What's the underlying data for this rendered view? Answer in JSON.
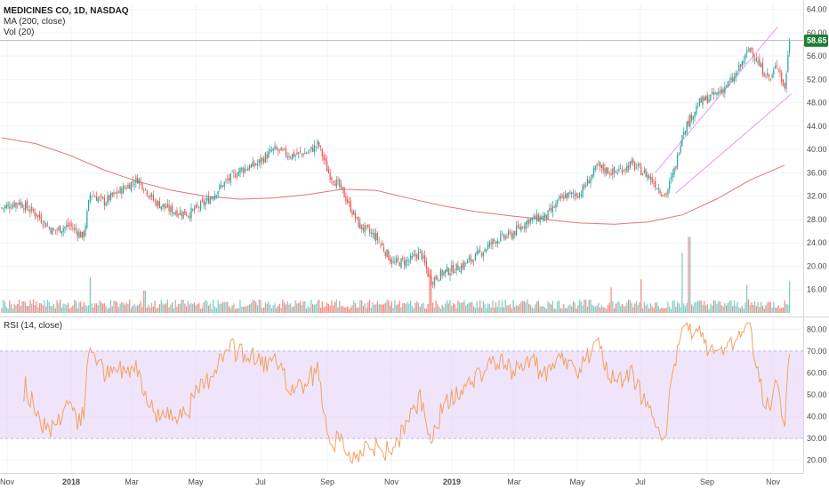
{
  "header": {
    "symbol_title": "MEDICINES CO, 1D, NASDAQ",
    "ma_label": "MA (200, close)",
    "vol_label": "Vol (20)",
    "rsi_label": "RSI (14, close)"
  },
  "last_price": {
    "value": 58.65,
    "label": "58.65"
  },
  "colors": {
    "up": "#26a69a",
    "down": "#ef5350",
    "vol_up": "#80cbc4",
    "vol_down": "#f28b82",
    "ma": "#e57373",
    "rsi": "#f4a261",
    "rsi_band": "#eadbf7",
    "channel": "#e59be8",
    "badge": "#1e7e34",
    "grid": "#f0f3f5",
    "axis": "#555555"
  },
  "chart_data": [
    {
      "type": "candlestick",
      "name": "price",
      "x_ticks": [
        "Nov",
        "2018",
        "Mar",
        "May",
        "Jul",
        "Sep",
        "Nov",
        "2019",
        "Mar",
        "May",
        "Jul",
        "Sep",
        "Nov"
      ],
      "y_ticks": [
        16.0,
        20.0,
        24.0,
        28.0,
        32.0,
        36.0,
        40.0,
        44.0,
        48.0,
        52.0,
        56.0,
        60.0,
        64.0
      ],
      "y_tick_labels": [
        "16.00",
        "20.00",
        "24.00",
        "28.00",
        "32.00",
        "36.00",
        "40.00",
        "44.00",
        "48.00",
        "52.00",
        "56.00",
        "60.00",
        "64.00"
      ],
      "ylim": [
        12,
        65
      ],
      "close_anchors": [
        {
          "month": 0,
          "v": 30.0
        },
        {
          "month": 0.5,
          "v": 31.0
        },
        {
          "month": 1.0,
          "v": 29.0
        },
        {
          "month": 1.5,
          "v": 26.0
        },
        {
          "month": 2.0,
          "v": 27.0
        },
        {
          "month": 2.4,
          "v": 25.0
        },
        {
          "month": 2.6,
          "v": 32.5
        },
        {
          "month": 3.0,
          "v": 31.0
        },
        {
          "month": 3.5,
          "v": 33.0
        },
        {
          "month": 4.0,
          "v": 35.0
        },
        {
          "month": 4.5,
          "v": 31.0
        },
        {
          "month": 5.0,
          "v": 29.5
        },
        {
          "month": 5.5,
          "v": 29.0
        },
        {
          "month": 6.0,
          "v": 31.0
        },
        {
          "month": 6.5,
          "v": 34.0
        },
        {
          "month": 7.0,
          "v": 36.5
        },
        {
          "month": 7.5,
          "v": 37.5
        },
        {
          "month": 8.0,
          "v": 40.0
        },
        {
          "month": 8.5,
          "v": 39.0
        },
        {
          "month": 9.0,
          "v": 39.5
        },
        {
          "month": 9.3,
          "v": 41.0
        },
        {
          "month": 9.6,
          "v": 36.0
        },
        {
          "month": 10.0,
          "v": 33.0
        },
        {
          "month": 10.5,
          "v": 27.0
        },
        {
          "month": 11.0,
          "v": 25.0
        },
        {
          "month": 11.5,
          "v": 20.5
        },
        {
          "month": 12.0,
          "v": 21.0
        },
        {
          "month": 12.3,
          "v": 22.5
        },
        {
          "month": 12.6,
          "v": 17.5
        },
        {
          "month": 13.0,
          "v": 19.0
        },
        {
          "month": 13.5,
          "v": 20.0
        },
        {
          "month": 14.0,
          "v": 22.0
        },
        {
          "month": 14.5,
          "v": 24.5
        },
        {
          "month": 15.0,
          "v": 25.5
        },
        {
          "month": 15.5,
          "v": 28.0
        },
        {
          "month": 16.0,
          "v": 28.5
        },
        {
          "month": 16.5,
          "v": 32.0
        },
        {
          "month": 17.0,
          "v": 32.5
        },
        {
          "month": 17.5,
          "v": 37.0
        },
        {
          "month": 18.0,
          "v": 36.0
        },
        {
          "month": 18.5,
          "v": 37.5
        },
        {
          "month": 19.0,
          "v": 35.5
        },
        {
          "month": 19.5,
          "v": 32.0
        },
        {
          "month": 19.8,
          "v": 37.0
        },
        {
          "month": 20.0,
          "v": 43.0
        },
        {
          "month": 20.5,
          "v": 48.0
        },
        {
          "month": 21.0,
          "v": 49.5
        },
        {
          "month": 21.5,
          "v": 52.0
        },
        {
          "month": 22.0,
          "v": 57.5
        },
        {
          "month": 22.3,
          "v": 54.0
        },
        {
          "month": 22.6,
          "v": 52.0
        },
        {
          "month": 22.8,
          "v": 55.0
        },
        {
          "month": 23.0,
          "v": 50.0
        },
        {
          "month": 23.15,
          "v": 58.65
        }
      ],
      "x_months": 23.5,
      "moving_average_200": [
        {
          "month": 0,
          "v": 42.0
        },
        {
          "month": 1,
          "v": 41.0
        },
        {
          "month": 2,
          "v": 39.0
        },
        {
          "month": 3,
          "v": 36.5
        },
        {
          "month": 4,
          "v": 34.5
        },
        {
          "month": 5,
          "v": 33.0
        },
        {
          "month": 6,
          "v": 32.0
        },
        {
          "month": 7,
          "v": 31.5
        },
        {
          "month": 8,
          "v": 31.7
        },
        {
          "month": 9,
          "v": 32.3
        },
        {
          "month": 10,
          "v": 33.2
        },
        {
          "month": 11,
          "v": 33.0
        },
        {
          "month": 12,
          "v": 31.6
        },
        {
          "month": 13,
          "v": 30.3
        },
        {
          "month": 14,
          "v": 29.3
        },
        {
          "month": 15,
          "v": 28.6
        },
        {
          "month": 16,
          "v": 28.0
        },
        {
          "month": 17,
          "v": 27.4
        },
        {
          "month": 18,
          "v": 27.2
        },
        {
          "month": 19,
          "v": 27.6
        },
        {
          "month": 20,
          "v": 28.8
        },
        {
          "month": 21,
          "v": 31.5
        },
        {
          "month": 22,
          "v": 34.8
        },
        {
          "month": 23,
          "v": 37.3
        }
      ],
      "channel_lines": [
        {
          "from": {
            "month": 19.2,
            "v": 36.0
          },
          "to": {
            "month": 22.8,
            "v": 61.0
          }
        },
        {
          "from": {
            "month": 19.8,
            "v": 32.5
          },
          "to": {
            "month": 23.2,
            "v": 49.5
          }
        }
      ]
    },
    {
      "type": "bar",
      "name": "volume",
      "note_spikes": [
        {
          "month": 2.6,
          "rel": 0.45
        },
        {
          "month": 4.2,
          "rel": 0.28
        },
        {
          "month": 12.6,
          "rel": 0.55
        },
        {
          "month": 17.9,
          "rel": 0.32
        },
        {
          "month": 18.8,
          "rel": 0.42
        },
        {
          "month": 20.0,
          "rel": 0.75
        },
        {
          "month": 20.2,
          "rel": 0.95
        },
        {
          "month": 21.9,
          "rel": 0.35
        },
        {
          "month": 23.15,
          "rel": 0.4
        }
      ]
    },
    {
      "type": "line",
      "name": "rsi",
      "y_ticks": [
        20.0,
        30.0,
        40.0,
        50.0,
        60.0,
        70.0,
        80.0
      ],
      "y_tick_labels": [
        "20.00",
        "30.00",
        "40.00",
        "50.00",
        "60.00",
        "70.00",
        "80.00"
      ],
      "ylim": [
        15,
        85
      ],
      "band": [
        30,
        70
      ]
    }
  ]
}
